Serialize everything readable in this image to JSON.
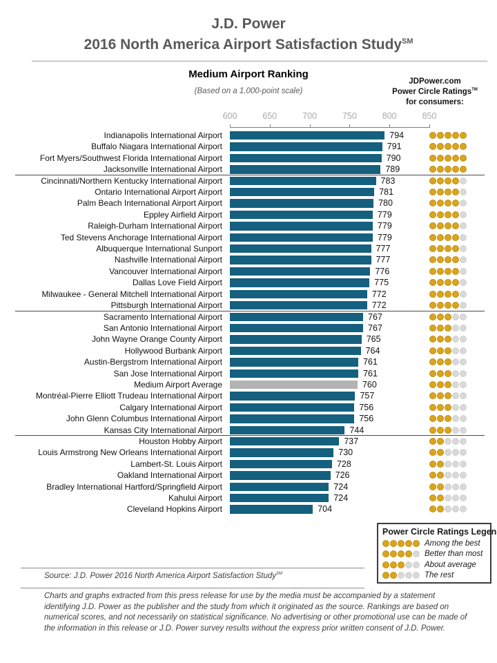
{
  "header": {
    "title_line1": "J.D. Power",
    "title_line2": "2016 North America Airport Satisfaction Study",
    "title_sup": "SM",
    "chart_title": "Medium Airport Ranking",
    "chart_subtitle": "(Based on a 1,000-point scale)",
    "ratings_line1": "JDPower.com",
    "ratings_line2": "Power Circle Ratings",
    "ratings_line2_sup": "TM",
    "ratings_line3": "for consumers:"
  },
  "legend": {
    "title": "Power Circle Ratings Legend",
    "items": [
      {
        "circles": 5,
        "label": "Among the best"
      },
      {
        "circles": 4,
        "label": "Better than most"
      },
      {
        "circles": 3,
        "label": "About average"
      },
      {
        "circles": 2,
        "label": "The rest"
      }
    ]
  },
  "footer": {
    "source": "Source: J.D. Power 2016 North America Airport Satisfaction Study",
    "source_sup": "SM",
    "disclaimer": "Charts and graphs extracted from this press release for use by the media must be accompanied by a statement identifying J.D. Power as the publisher and the study from which it originated as the source. Rankings are based on numerical scores, and not necessarily on statistical significance. No advertising or other promotional use can be made of the information in this release or J.D. Power survey results without the express prior written consent of J.D. Power."
  },
  "chart_data": {
    "type": "bar",
    "orientation": "horizontal",
    "title": "Medium Airport Ranking",
    "subtitle": "(Based on a 1,000-point scale)",
    "xlim": [
      600,
      850
    ],
    "xticks": [
      600,
      650,
      700,
      750,
      800,
      850
    ],
    "grid": false,
    "bar_color": "#14607E",
    "average_bar_color": "#B3B3B3",
    "gold_dot_color": "#DAA51D",
    "gray_dot_color": "#D9D9D9",
    "categories": [
      "Indianapolis International Airport",
      "Buffalo Niagara International Airport",
      "Fort Myers/Southwest Florida International Airport",
      "Jacksonville International Airport",
      "Cincinnati/Northern Kentucky International Airport",
      "Ontario International Airport Airport",
      "Palm Beach International Airport Airport",
      "Eppley Airfield Airport",
      "Raleigh-Durham International Airport",
      "Ted Stevens Anchorage International Airport",
      "Albuquerque International Sunport",
      "Nashville International Airport",
      "Vancouver International Airport",
      "Dallas Love Field Airport",
      "Milwaukee - General Mitchell International Airport",
      "Pittsburgh International Airport",
      "Sacramento International Airport",
      "San Antonio International Airport",
      "John Wayne Orange County Airport",
      "Hollywood Burbank Airport",
      "Austin-Bergstrom International Airport",
      "San Jose International Airport",
      "Medium Airport Average",
      "Montréal-Pierre Elliott Trudeau International Airport",
      "Calgary International Airport",
      "John Glenn Columbus International Airport",
      "Kansas City International Airport",
      "Houston Hobby Airport",
      "Louis Armstrong New Orleans International Airport",
      "Lambert-St. Louis Airport",
      "Oakland International Airport",
      "Bradley International Hartford/Springfield Airport",
      "Kahului Airport",
      "Cleveland Hopkins Airport"
    ],
    "values": [
      794,
      791,
      790,
      789,
      783,
      781,
      780,
      779,
      779,
      779,
      777,
      777,
      776,
      775,
      772,
      772,
      767,
      767,
      765,
      764,
      761,
      761,
      760,
      757,
      756,
      756,
      744,
      737,
      730,
      728,
      726,
      724,
      724,
      704
    ],
    "power_circle_ratings": [
      5,
      5,
      5,
      5,
      4,
      4,
      4,
      4,
      4,
      4,
      4,
      4,
      4,
      4,
      4,
      4,
      3,
      3,
      3,
      3,
      3,
      3,
      3,
      3,
      3,
      3,
      3,
      2,
      2,
      2,
      2,
      2,
      2,
      2
    ],
    "average_row_index": 22,
    "separators_after_indices": [
      3,
      15,
      26
    ]
  }
}
